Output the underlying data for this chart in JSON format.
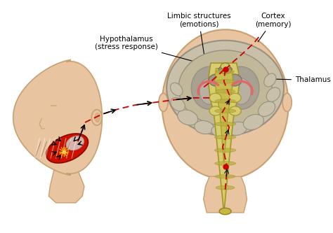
{
  "skin_color": "#e8c4a0",
  "skin_edge": "#c8a070",
  "skin_shadow": "#d4a878",
  "brain_gray": "#b0a888",
  "brain_light": "#c8c0a8",
  "brain_dark": "#989080",
  "brainstem_yellow": "#d8cc70",
  "brainstem_light": "#e8dc90",
  "brainstem_inner": "#c8b850",
  "muscle_red": "#cc1100",
  "muscle_dark": "#880800",
  "muscle_white": "#e8e0d8",
  "limbic_pink": "#e06868",
  "red_dash": "#cc0000",
  "labels": {
    "limbic": "Limbic structures\n(emotions)",
    "cortex": "Cortex\n(memory)",
    "hypothalamus": "Hypothalamus\n(stress response)",
    "thalamus": "Thalamus"
  },
  "label_fontsize": 7.5
}
